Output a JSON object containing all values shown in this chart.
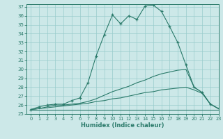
{
  "xlabel": "Humidex (Indice chaleur)",
  "bg_color": "#cce8e8",
  "line_color": "#2a7a6a",
  "grid_color": "#99cccc",
  "xlim": [
    -0.5,
    23
  ],
  "ylim": [
    25,
    37.3
  ],
  "yticks": [
    25,
    26,
    27,
    28,
    29,
    30,
    31,
    32,
    33,
    34,
    35,
    36,
    37
  ],
  "xticks": [
    0,
    1,
    2,
    3,
    4,
    5,
    6,
    7,
    8,
    9,
    10,
    11,
    12,
    13,
    14,
    15,
    16,
    17,
    18,
    19,
    20,
    21,
    22,
    23
  ],
  "series": [
    {
      "x": [
        0,
        1,
        2,
        3,
        4,
        5,
        6,
        7,
        8,
        9,
        10,
        11,
        12,
        13,
        14,
        15,
        16,
        17,
        18,
        19,
        20,
        21,
        22,
        23
      ],
      "y": [
        25.5,
        25.8,
        26.0,
        26.1,
        26.1,
        26.5,
        26.8,
        28.5,
        31.5,
        33.9,
        36.1,
        35.1,
        36.0,
        35.6,
        37.1,
        37.2,
        36.5,
        34.8,
        33.0,
        30.5,
        28.0,
        27.4,
        26.1,
        25.6
      ],
      "marker": "+"
    },
    {
      "x": [
        0,
        1,
        2,
        3,
        4,
        5,
        6,
        7,
        8,
        9,
        10,
        11,
        12,
        13,
        14,
        15,
        16,
        17,
        18,
        19,
        20,
        21,
        22,
        23
      ],
      "y": [
        25.5,
        25.6,
        25.8,
        26.0,
        26.0,
        26.1,
        26.2,
        26.4,
        26.7,
        27.1,
        27.5,
        27.8,
        28.1,
        28.5,
        28.8,
        29.2,
        29.5,
        29.7,
        29.9,
        30.0,
        28.0,
        27.4,
        26.1,
        25.6
      ],
      "marker": null
    },
    {
      "x": [
        0,
        1,
        2,
        3,
        4,
        5,
        6,
        7,
        8,
        9,
        10,
        11,
        12,
        13,
        14,
        15,
        16,
        17,
        18,
        19,
        20,
        21,
        22,
        23
      ],
      "y": [
        25.5,
        25.6,
        25.7,
        25.8,
        25.9,
        26.0,
        26.1,
        26.2,
        26.4,
        26.5,
        26.7,
        26.8,
        27.0,
        27.2,
        27.4,
        27.5,
        27.7,
        27.8,
        27.9,
        28.0,
        27.7,
        27.3,
        26.1,
        25.6
      ],
      "marker": null
    },
    {
      "x": [
        0,
        1,
        2,
        3,
        4,
        5,
        6,
        7,
        8,
        9,
        10,
        11,
        12,
        13,
        14,
        15,
        16,
        17,
        18,
        19,
        20,
        21,
        22,
        23
      ],
      "y": [
        25.5,
        25.5,
        25.5,
        25.5,
        25.5,
        25.5,
        25.5,
        25.5,
        25.5,
        25.5,
        25.5,
        25.5,
        25.5,
        25.5,
        25.5,
        25.5,
        25.5,
        25.5,
        25.5,
        25.5,
        25.5,
        25.5,
        25.5,
        25.5
      ],
      "marker": null
    }
  ]
}
